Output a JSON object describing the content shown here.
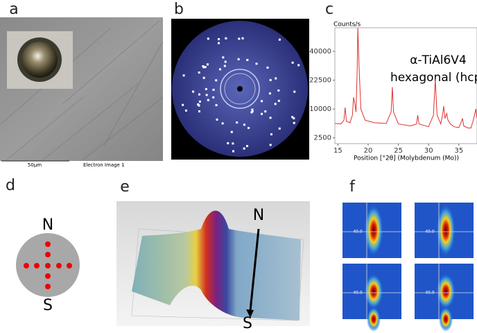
{
  "panels": {
    "a": {
      "label": "a",
      "scale_bar": "50µm",
      "caption": "Electron Image 1"
    },
    "b": {
      "label": "b"
    },
    "c": {
      "label": "c",
      "chart": {
        "type": "line",
        "y_axis_label": "Counts/s",
        "x_axis_label": "Position [°2θ] (Molybdenum (Mo))",
        "annotation": "α-TiAl6V4",
        "annotation_2": "hexagonal (hcp)",
        "color": "#e03030",
        "y_scale": "sqrt",
        "x": [
          14.5,
          15.5,
          16.0,
          16.2,
          16.4,
          17.0,
          17.4,
          17.6,
          17.8,
          18.0,
          18.2,
          18.3,
          18.5,
          18.8,
          19.5,
          21,
          23,
          23.8,
          24.0,
          24.2,
          25,
          27,
          28.0,
          28.2,
          28.4,
          30,
          30.8,
          31.1,
          31.4,
          32,
          32.3,
          32.5,
          32.7,
          33.0,
          33.2,
          33.6,
          34.2,
          35.0,
          35.4,
          35.6,
          35.8,
          36.5,
          37.0,
          37.3,
          37.6,
          37.8,
          38
        ],
        "values": [
          5600,
          5500,
          6500,
          10500,
          6200,
          5800,
          8000,
          14500,
          12000,
          9000,
          30000,
          58000,
          30000,
          10000,
          6500,
          5800,
          5600,
          9000,
          19000,
          9000,
          5500,
          5000,
          5500,
          8000,
          5500,
          4800,
          8000,
          23000,
          8000,
          5500,
          8000,
          11000,
          7000,
          8500,
          6500,
          5500,
          4800,
          4600,
          6000,
          7000,
          5000,
          4500,
          4500,
          6000,
          8000,
          10000,
          7000
        ],
        "xlim": [
          14.5,
          38
        ],
        "ylim": [
          1600,
          58000
        ],
        "xticks": [
          15,
          20,
          25,
          30,
          35
        ],
        "yticks": [
          2500,
          10000,
          22500,
          40000
        ]
      }
    },
    "d": {
      "label": "d",
      "north": "N",
      "south": "S"
    },
    "e": {
      "label": "e",
      "north": "N",
      "south": "S"
    },
    "f": {
      "label": "f",
      "image_labels": [
        "40.0",
        "40.0",
        "40.0",
        "40.0"
      ]
    }
  }
}
